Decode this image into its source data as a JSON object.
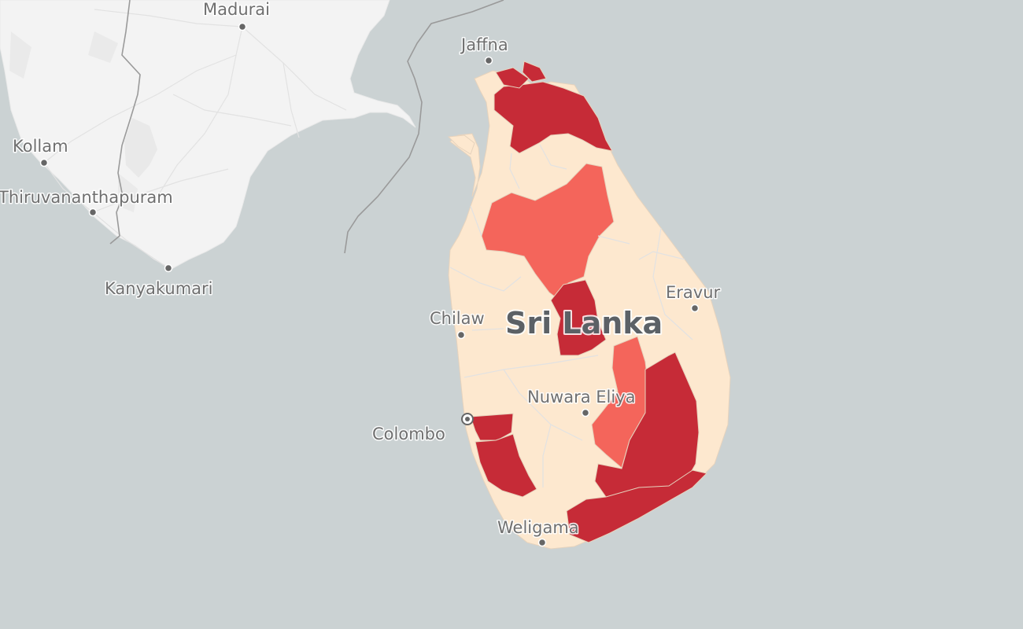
{
  "map": {
    "country_label": "Sri Lanka",
    "city_labels": {
      "madurai": "Madurai",
      "kollam": "Kollam",
      "thiruvananthapuram": "Thiruvananthapuram",
      "kanyakumari": "Kanyakumari",
      "jaffna": "Jaffna",
      "chilaw": "Chilaw",
      "eravur": "Eravur",
      "colombo": "Colombo",
      "nuwara_eliya": "Nuwara Eliya",
      "weligama": "Weligama"
    },
    "colors": {
      "water": "#cbd2d3",
      "land": "#f3f3f3",
      "district_low": "#fde8cf",
      "district_mid": "#f4655b",
      "district_high": "#c62b37",
      "label_text": "#6f6f6f"
    },
    "district_levels": {
      "jaffna_north": "high",
      "kilinochchi_mullaitivu": "high",
      "vavuniya": "low",
      "mannar_west": "low",
      "anuradhapura": "mid",
      "polonnaruwa_west": "mid",
      "matale": "high",
      "badulla": "mid",
      "monaragala": "high",
      "hambantota": "high",
      "colombo": "high",
      "kalutara": "high",
      "galle": "low",
      "kandy": "low",
      "nuwara_eliya": "low",
      "ratnapura": "low",
      "kegalle": "low",
      "gampaha": "low",
      "puttalam": "low",
      "kurunegala": "low",
      "trincomalee": "low",
      "batticaloa": "low",
      "ampara": "low"
    }
  }
}
